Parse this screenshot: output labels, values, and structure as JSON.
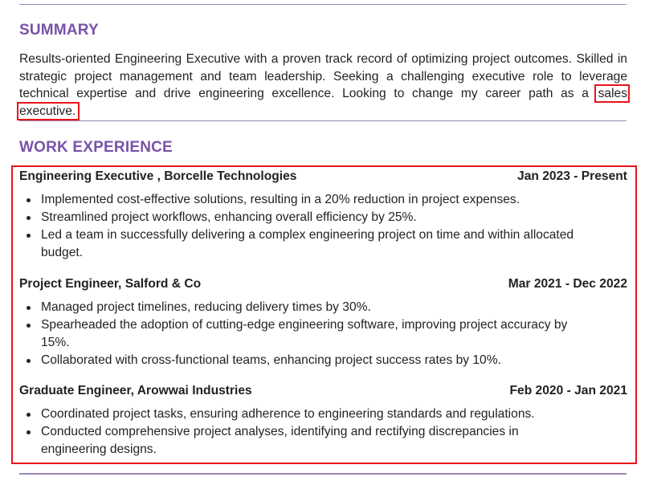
{
  "summary": {
    "title": "SUMMARY",
    "text_before": "Results-oriented Engineering Executive with a proven track record of optimizing project outcomes. Skilled in strategic project management and team leadership. Seeking a challenging executive role to leverage technical expertise and drive engineering excellence. Looking to change my career path as a ",
    "highlight": "sales executive."
  },
  "work_experience": {
    "title": "WORK EXPERIENCE",
    "jobs": [
      {
        "role_company": "Engineering Executive , Borcelle Technologies",
        "dates": "Jan 2023 - Present",
        "bullets": [
          "Implemented cost-effective solutions, resulting in a 20% reduction in project expenses.",
          "Streamlined project workflows, enhancing overall efficiency by 25%.",
          "Led a team in successfully delivering a complex engineering project on time and within allocated budget."
        ]
      },
      {
        "role_company": "Project Engineer, Salford & Co",
        "dates": "Mar 2021 - Dec 2022",
        "bullets": [
          "Managed project timelines, reducing delivery times by 30%.",
          "Spearheaded the adoption of cutting-edge engineering software, improving project accuracy by 15%.",
          "Collaborated with cross-functional teams, enhancing project success rates by 10%."
        ]
      },
      {
        "role_company": "Graduate Engineer, Arowwai Industries",
        "dates": "Feb 2020 - Jan 2021",
        "bullets": [
          "Coordinated project tasks, ensuring adherence to engineering standards and regulations.",
          "Conducted comprehensive project analyses, identifying and rectifying discrepancies in engineering designs."
        ]
      }
    ]
  },
  "colors": {
    "heading": "#7a52a8",
    "divider": "#9b87b8",
    "highlight_border": "#e8141c",
    "text": "#222222"
  }
}
